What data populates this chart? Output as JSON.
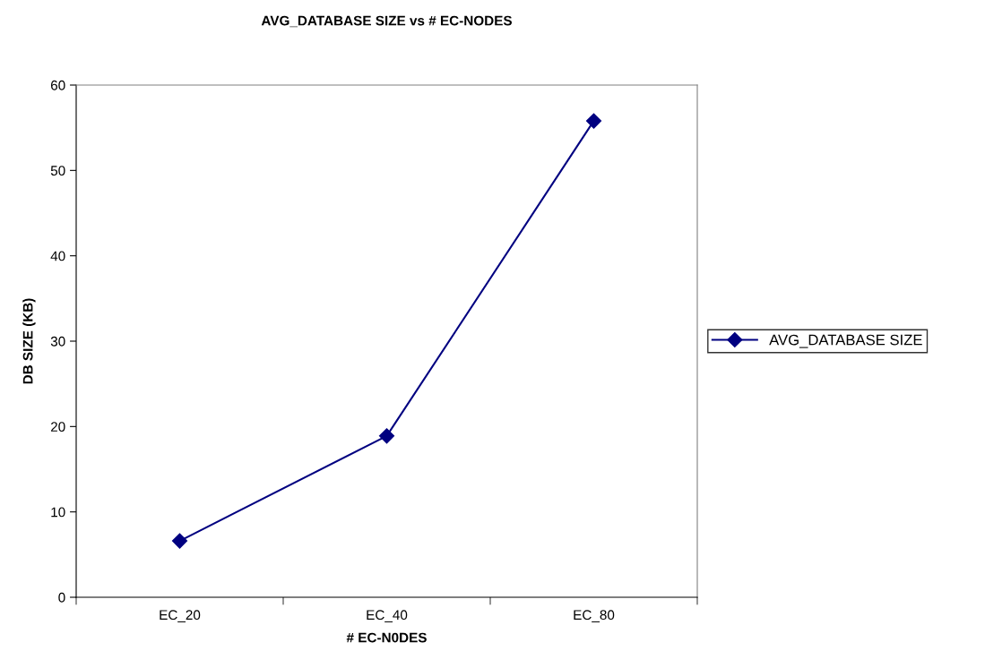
{
  "chart_data": {
    "type": "line",
    "title": "AVG_DATABASE SIZE vs # EC-NODES",
    "xlabel": "# EC-N0DES",
    "ylabel": "DB SIZE (KB)",
    "categories": [
      "EC_20",
      "EC_40",
      "EC_80"
    ],
    "series": [
      {
        "name": "AVG_DATABASE SIZE",
        "color": "#000080",
        "values": [
          6.6,
          18.9,
          55.8
        ]
      }
    ],
    "ylim": [
      0,
      60
    ],
    "yticks": [
      0,
      10,
      20,
      30,
      40,
      50,
      60
    ],
    "grid": false,
    "legend": "right",
    "marker": "diamond",
    "line_style": "solid"
  }
}
